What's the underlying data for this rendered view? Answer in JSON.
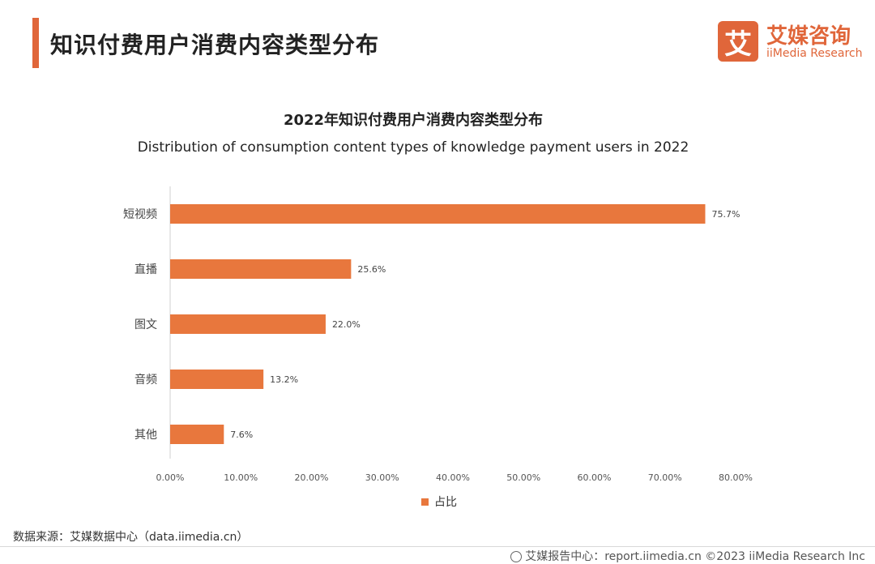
{
  "header": {
    "title": "知识付费用户消费内容类型分布"
  },
  "logo": {
    "mark": "艾",
    "name_cn": "艾媒咨询",
    "name_en": "iiMedia Research"
  },
  "chart_data": {
    "type": "bar",
    "orientation": "horizontal",
    "title": "2022年知识付费用户消费内容类型分布",
    "subtitle": "Distribution of consumption content types of knowledge payment users in 2022",
    "categories": [
      "短视频",
      "直播",
      "图文",
      "音频",
      "其他"
    ],
    "series": [
      {
        "name": "占比",
        "values": [
          75.7,
          25.6,
          22.0,
          13.2,
          7.6
        ],
        "color": "#e8773d"
      }
    ],
    "value_labels": [
      "75.7%",
      "25.6%",
      "22.0%",
      "13.2%",
      "7.6%"
    ],
    "xlim": [
      0,
      80
    ],
    "x_ticks": [
      "0.00%",
      "10.00%",
      "20.00%",
      "30.00%",
      "40.00%",
      "50.00%",
      "60.00%",
      "70.00%",
      "80.00%"
    ],
    "grid": false,
    "legend_position": "bottom"
  },
  "source": "数据来源：艾媒数据中心（data.iimedia.cn）",
  "footer": "艾媒报告中心：report.iimedia.cn  ©2023  iiMedia Research Inc"
}
